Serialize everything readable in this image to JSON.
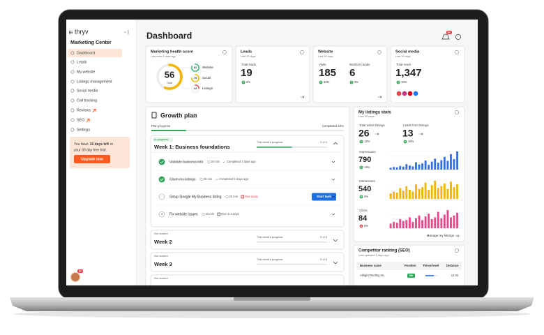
{
  "sidebar": {
    "logo": "thryv",
    "title": "Marketing Center",
    "nav": [
      "Dashboard",
      "Leads",
      "My website",
      "Listings management",
      "Social media",
      "Call tracking",
      "Reviews",
      "SEO",
      "Settings"
    ],
    "trial": {
      "before": "You have",
      "days": "16 days left",
      "after": "in",
      "line2": "your 30 day free trial.",
      "button": "Upgrade now"
    },
    "avatar_badge": "9+"
  },
  "header": {
    "title": "Dashboard",
    "notifications": "9+"
  },
  "cards": {
    "health": {
      "title": "Marketing health score",
      "subtitle": "Last scan 8 days ago",
      "score": 56,
      "score_label": "Total",
      "color": "#f5b400",
      "parts": [
        {
          "value": 81,
          "label": "Website",
          "color": "#34b36b"
        },
        {
          "value": 75,
          "label": "Social",
          "color": "#f5b400"
        },
        {
          "value": 24,
          "label": "Listings",
          "color": "#e5484d"
        }
      ]
    },
    "leads": {
      "title": "Leads",
      "subtitle": "Last 30 days",
      "metric": "Total leads",
      "value": 19,
      "change": "6%"
    },
    "website": {
      "title": "Website",
      "subtitle": "Last 30 days",
      "metrics": [
        {
          "label": "Visits",
          "value": 185,
          "change": "32%"
        },
        {
          "label": "Webform leads",
          "value": 6,
          "change": "3%"
        }
      ]
    },
    "social": {
      "title": "Social media",
      "subtitle": "Last 30 days",
      "metric": "Total reach",
      "value": "1,347",
      "change": "16%"
    }
  },
  "growth_plan": {
    "title": "Growth plan",
    "progress_label": "Plan progress",
    "completed": {
      "label": "Completed 18%",
      "value": 18
    },
    "progress_heading": "This week's progress",
    "weeks": [
      {
        "status": "In progress",
        "title": "Week 1: Business foundations",
        "progress": {
          "label": "2 of 4",
          "done": 2,
          "total": 4
        },
        "tasks": [
          {
            "name": "Validate business info",
            "duration": "30 min",
            "state": "Completed 3 days ago"
          },
          {
            "name": "Claim my listings",
            "duration": "20 min",
            "state": "Completed 2 days ago"
          },
          {
            "name": "Setup Google My Business listing",
            "duration": "20 min",
            "state": "Due today",
            "action": "Start task"
          },
          {
            "number": "4",
            "name": "Fix website issues",
            "duration": "45 min",
            "state": "Due in 3 days"
          }
        ]
      },
      {
        "status": "Not started",
        "title": "Week 2",
        "progress": {
          "label": "0 of 5",
          "done": 0,
          "total": 5
        }
      },
      {
        "status": "Not started",
        "title": "Week 3",
        "progress": {
          "label": "0 of 5",
          "done": 0,
          "total": 5
        }
      },
      {
        "status": "Not started"
      }
    ]
  },
  "listings": {
    "title": "My listings stats",
    "subtitle": "Last 30 days",
    "totals": [
      {
        "label": "Total active listings",
        "value": 26,
        "change": "12%"
      },
      {
        "label": "Leads from listings",
        "value": 13,
        "change": "16%"
      }
    ],
    "trends": [
      {
        "label": "Impressions",
        "value": 790,
        "change": "14%",
        "direction": "up",
        "color": "#2f6fe4",
        "bars": [
          10,
          14,
          12,
          20,
          16,
          30,
          22,
          18,
          40,
          28,
          34,
          50,
          26,
          44,
          60,
          38,
          52,
          70,
          48,
          85,
          58,
          100
        ]
      },
      {
        "label": "Interactions",
        "value": 540,
        "change": "2%",
        "direction": "up",
        "color": "#f5b400",
        "bars": [
          30,
          40,
          35,
          60,
          45,
          70,
          50,
          40,
          80,
          55,
          65,
          90,
          50,
          75,
          100,
          60,
          70,
          85,
          55,
          95,
          65,
          80
        ]
      },
      {
        "label": "Clicks",
        "value": 84,
        "change": "6%",
        "direction": "down",
        "color": "#e8458b",
        "bars": [
          25,
          35,
          30,
          50,
          40,
          45,
          60,
          35,
          55,
          70,
          45,
          65,
          80,
          50,
          60,
          90,
          55,
          75,
          100,
          60,
          70,
          85
        ]
      }
    ],
    "link": "Manage my listings"
  },
  "competitors": {
    "title": "Competitor ranking (SEO)",
    "subtitle": "Last updated 4 days ago",
    "columns": [
      "Business name",
      "Position",
      "Threat level",
      "Distance"
    ],
    "rows": [
      {
        "name": "Allright Roofing Inc.",
        "position": "5th",
        "distance": "12 mi"
      }
    ]
  }
}
